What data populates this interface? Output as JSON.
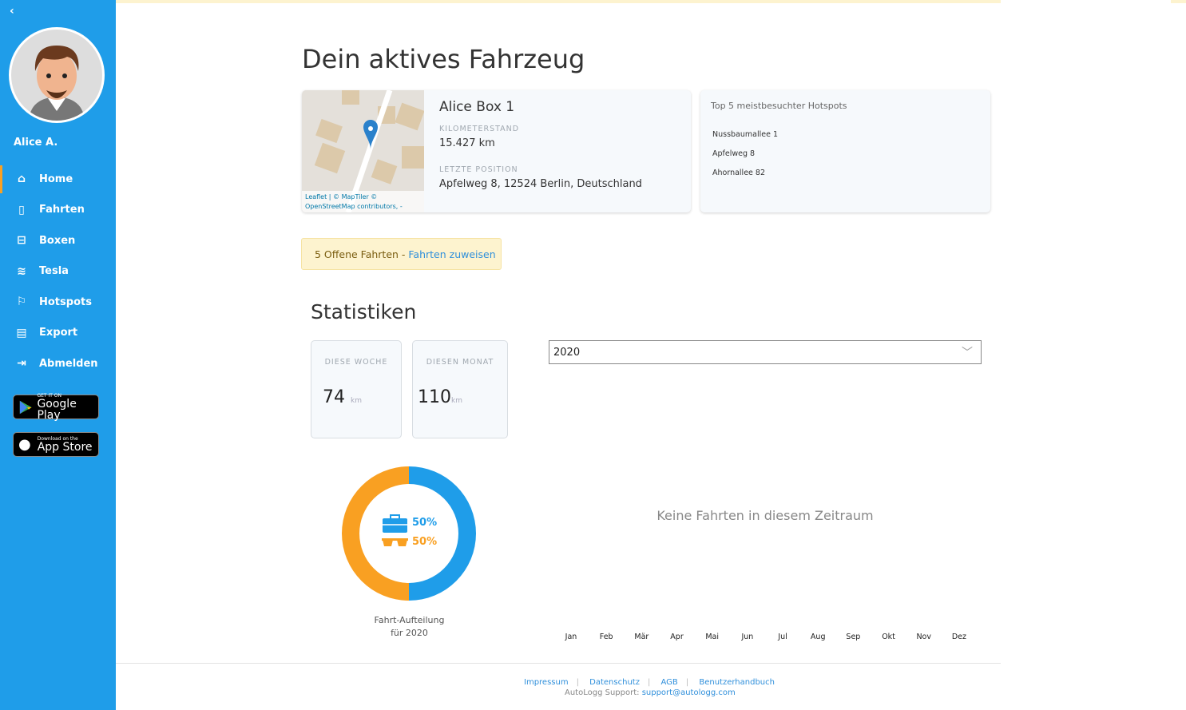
{
  "sidebar": {
    "back": "‹",
    "user_name": "Alice A.",
    "items": [
      {
        "label": "Home",
        "icon": "home-icon",
        "glyph": "⌂"
      },
      {
        "label": "Fahrten",
        "icon": "book-icon",
        "glyph": "▯"
      },
      {
        "label": "Boxen",
        "icon": "router-icon",
        "glyph": "⊟"
      },
      {
        "label": "Tesla",
        "icon": "wifi-icon",
        "glyph": "≋"
      },
      {
        "label": "Hotspots",
        "icon": "flag-icon",
        "glyph": "⚐"
      },
      {
        "label": "Export",
        "icon": "file-icon",
        "glyph": "▤"
      },
      {
        "label": "Abmelden",
        "icon": "sign-in-icon",
        "glyph": "⇥"
      }
    ],
    "google_play": {
      "small": "GET IT ON",
      "large": "Google Play"
    },
    "app_store": {
      "small": "Download on the",
      "large": "App Store"
    }
  },
  "main": {
    "title": "Dein aktives Fahrzeug",
    "vehicle": {
      "name": "Alice Box 1",
      "odometer_label": "KILOMETERSTAND",
      "odometer": "15.427 km",
      "position_label": "LETZTE POSITION",
      "position": "Apfelweg 8, 12524 Berlin, Deutschland",
      "map_attribution_1": "Leaflet | © MapTiler ©",
      "map_attribution_2": "OpenStreetMap contributors, -",
      "street": "Apfelweg"
    },
    "hotspots": {
      "title": "Top 5 meistbesuchter Hotspots",
      "items": [
        "Nussbaumallee 1",
        "Apfelweg 8",
        "Ahornallee 82"
      ]
    },
    "alert": {
      "text": "5 Offene Fahrten - ",
      "link": "Fahrten zuweisen"
    },
    "stats_title": "Statistiken",
    "week": {
      "label": "DIESE WOCHE",
      "value": "74",
      "unit": "km"
    },
    "month": {
      "label": "DIESEN MONAT",
      "value": "110",
      "unit": "km"
    },
    "year_select": "2020",
    "donut": {
      "business_pct": "50%",
      "private_pct": "50%",
      "business_color": "#1f9de9",
      "private_color": "#f9a022",
      "caption_1": "Fahrt-Aufteilung",
      "caption_2": "für 2020"
    },
    "empty_text": "Keine Fahrten in diesem Zeitraum",
    "months": [
      "Jan",
      "Feb",
      "Mär",
      "Apr",
      "Mai",
      "Jun",
      "Jul",
      "Aug",
      "Sep",
      "Okt",
      "Nov",
      "Dez"
    ]
  },
  "footer": {
    "links": [
      "Impressum",
      "Datenschutz",
      "AGB",
      "Benutzerhandbuch"
    ],
    "support_label": "AutoLogg Support: ",
    "support_email": "support@autologg.com"
  }
}
